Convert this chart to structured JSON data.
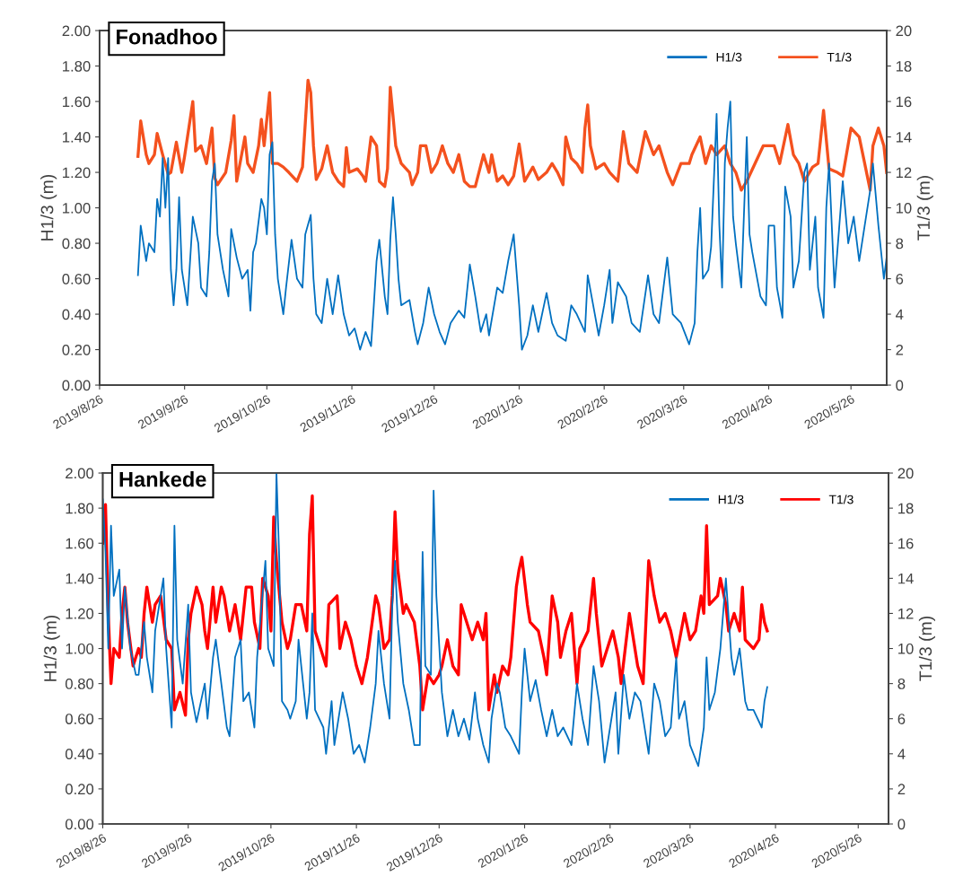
{
  "chart_data": [
    {
      "type": "line",
      "title": "Fonadhoo",
      "ylabel": "H1/3 (m)",
      "y2label": "T1/3 (m)",
      "legend": "top right",
      "grid": false,
      "xlim": [
        "2019-08-26",
        "2020-06-08"
      ],
      "xticks": [
        {
          "value": "2019-08-26",
          "label": "2019/8/26"
        },
        {
          "value": "2019-09-26",
          "label": "2019/9/26"
        },
        {
          "value": "2019-10-26",
          "label": "2019/10/26"
        },
        {
          "value": "2019-11-26",
          "label": "2019/11/26"
        },
        {
          "value": "2019-12-26",
          "label": "2019/12/26"
        },
        {
          "value": "2020-01-26",
          "label": "2020/1/26"
        },
        {
          "value": "2020-02-26",
          "label": "2020/2/26"
        },
        {
          "value": "2020-03-26",
          "label": "2020/3/26"
        },
        {
          "value": "2020-04-26",
          "label": "2020/4/26"
        },
        {
          "value": "2020-05-26",
          "label": "2020/5/26"
        }
      ],
      "ylim": [
        0,
        2
      ],
      "yticks": [
        {
          "value": 0,
          "label": "0.00"
        },
        {
          "value": 0.2,
          "label": "0.20"
        },
        {
          "value": 0.4,
          "label": "0.40"
        },
        {
          "value": 0.6,
          "label": "0.60"
        },
        {
          "value": 0.8,
          "label": "0.80"
        },
        {
          "value": 1.0,
          "label": "1.00"
        },
        {
          "value": 1.2,
          "label": "1.20"
        },
        {
          "value": 1.4,
          "label": "1.40"
        },
        {
          "value": 1.6,
          "label": "1.60"
        },
        {
          "value": 1.8,
          "label": "1.80"
        },
        {
          "value": 2.0,
          "label": "2.00"
        }
      ],
      "y2lim": [
        0,
        20
      ],
      "y2ticks": [
        0,
        2,
        4,
        6,
        8,
        10,
        12,
        14,
        16,
        18,
        20
      ],
      "series": [
        {
          "name": "H1/3",
          "color": "#0070c0",
          "axis": "y",
          "x": [
            "2019-09-09",
            "2019-09-10",
            "2019-09-12",
            "2019-09-13",
            "2019-09-15",
            "2019-09-16",
            "2019-09-17",
            "2019-09-18",
            "2019-09-19",
            "2019-09-20",
            "2019-09-21",
            "2019-09-22",
            "2019-09-23",
            "2019-09-24",
            "2019-09-25",
            "2019-09-27",
            "2019-09-29",
            "2019-10-01",
            "2019-10-02",
            "2019-10-04",
            "2019-10-05",
            "2019-10-06",
            "2019-10-07",
            "2019-10-08",
            "2019-10-10",
            "2019-10-12",
            "2019-10-13",
            "2019-10-15",
            "2019-10-17",
            "2019-10-19",
            "2019-10-20",
            "2019-10-21",
            "2019-10-22",
            "2019-10-24",
            "2019-10-25",
            "2019-10-26",
            "2019-10-27",
            "2019-10-28",
            "2019-10-29",
            "2019-10-30",
            "2019-11-01",
            "2019-11-02",
            "2019-11-04",
            "2019-11-06",
            "2019-11-08",
            "2019-11-09",
            "2019-11-11",
            "2019-11-12",
            "2019-11-13",
            "2019-11-15",
            "2019-11-17",
            "2019-11-19",
            "2019-11-21",
            "2019-11-23",
            "2019-11-25",
            "2019-11-27",
            "2019-11-29",
            "2019-12-01",
            "2019-12-03",
            "2019-12-04",
            "2019-12-05",
            "2019-12-06",
            "2019-12-08",
            "2019-12-09",
            "2019-12-10",
            "2019-12-11",
            "2019-12-12",
            "2019-12-13",
            "2019-12-14",
            "2019-12-17",
            "2019-12-19",
            "2019-12-20",
            "2019-12-22",
            "2019-12-24",
            "2019-12-26",
            "2019-12-28",
            "2019-12-30",
            "2020-01-01",
            "2020-01-04",
            "2020-01-06",
            "2020-01-08",
            "2020-01-10",
            "2020-01-12",
            "2020-01-14",
            "2020-01-15",
            "2020-01-18",
            "2020-01-20",
            "2020-01-22",
            "2020-01-24",
            "2020-01-25",
            "2020-01-26",
            "2020-01-27",
            "2020-01-29",
            "2020-01-31",
            "2020-02-02",
            "2020-02-05",
            "2020-02-07",
            "2020-02-09",
            "2020-02-12",
            "2020-02-14",
            "2020-02-16",
            "2020-02-19",
            "2020-02-20",
            "2020-02-22",
            "2020-02-24",
            "2020-02-26",
            "2020-02-28",
            "2020-02-29",
            "2020-03-02",
            "2020-03-05",
            "2020-03-07",
            "2020-03-10",
            "2020-03-13",
            "2020-03-15",
            "2020-03-17",
            "2020-03-20",
            "2020-03-22",
            "2020-03-25",
            "2020-03-28",
            "2020-03-30",
            "2020-03-31",
            "2020-04-01",
            "2020-04-02",
            "2020-04-04",
            "2020-04-05",
            "2020-04-07",
            "2020-04-08",
            "2020-04-09",
            "2020-04-10",
            "2020-04-11",
            "2020-04-12",
            "2020-04-13",
            "2020-04-14",
            "2020-04-16",
            "2020-04-18",
            "2020-04-19",
            "2020-04-20",
            "2020-04-23",
            "2020-04-25",
            "2020-04-26",
            "2020-04-28",
            "2020-04-29",
            "2020-05-01",
            "2020-05-02",
            "2020-05-04",
            "2020-05-05",
            "2020-05-07",
            "2020-05-09",
            "2020-05-10",
            "2020-05-11",
            "2020-05-13",
            "2020-05-14",
            "2020-05-16",
            "2020-05-17",
            "2020-05-18",
            "2020-05-20",
            "2020-05-21",
            "2020-05-23",
            "2020-05-25",
            "2020-05-27",
            "2020-05-29",
            "2020-05-31",
            "2020-06-02",
            "2020-06-03",
            "2020-06-05",
            "2020-06-07",
            "2020-06-08"
          ],
          "values": [
            0.62,
            0.9,
            0.7,
            0.8,
            0.75,
            1.05,
            0.95,
            1.28,
            1.0,
            1.28,
            0.65,
            0.45,
            0.65,
            1.06,
            0.65,
            0.45,
            0.95,
            0.8,
            0.55,
            0.5,
            0.75,
            1.15,
            1.25,
            0.85,
            0.65,
            0.5,
            0.88,
            0.72,
            0.6,
            0.65,
            0.42,
            0.75,
            0.8,
            1.05,
            1.0,
            0.85,
            1.3,
            1.37,
            0.85,
            0.6,
            0.4,
            0.55,
            0.82,
            0.6,
            0.55,
            0.85,
            0.96,
            0.6,
            0.4,
            0.35,
            0.6,
            0.4,
            0.62,
            0.4,
            0.28,
            0.32,
            0.2,
            0.3,
            0.22,
            0.45,
            0.7,
            0.82,
            0.5,
            0.4,
            0.82,
            1.06,
            0.85,
            0.6,
            0.45,
            0.48,
            0.3,
            0.23,
            0.35,
            0.55,
            0.4,
            0.3,
            0.23,
            0.35,
            0.42,
            0.38,
            0.68,
            0.5,
            0.3,
            0.4,
            0.28,
            0.55,
            0.52,
            0.7,
            0.85,
            0.65,
            0.45,
            0.2,
            0.28,
            0.45,
            0.3,
            0.52,
            0.35,
            0.28,
            0.25,
            0.45,
            0.4,
            0.3,
            0.62,
            0.45,
            0.28,
            0.45,
            0.65,
            0.35,
            0.58,
            0.5,
            0.35,
            0.3,
            0.62,
            0.4,
            0.35,
            0.72,
            0.4,
            0.35,
            0.23,
            0.35,
            0.75,
            1.0,
            0.6,
            0.65,
            0.78,
            1.53,
            0.9,
            0.55,
            1.25,
            1.45,
            1.6,
            0.95,
            0.8,
            0.55,
            1.4,
            0.85,
            0.75,
            0.5,
            0.45,
            0.9,
            0.9,
            0.55,
            0.38,
            1.12,
            0.95,
            0.55,
            0.7,
            1.2,
            1.25,
            0.65,
            0.95,
            0.55,
            0.38,
            1.0,
            1.25,
            0.55,
            0.75,
            1.15,
            0.8,
            0.95,
            0.7,
            0.9,
            1.1,
            1.25,
            0.9,
            0.6,
            0.72
          ]
        },
        {
          "name": "T1/3",
          "color": "#f4511e",
          "axis": "y2",
          "x": [
            "2019-09-09",
            "2019-09-10",
            "2019-09-12",
            "2019-09-13",
            "2019-09-15",
            "2019-09-16",
            "2019-09-18",
            "2019-09-20",
            "2019-09-21",
            "2019-09-23",
            "2019-09-25",
            "2019-09-26",
            "2019-09-29",
            "2019-09-30",
            "2019-10-02",
            "2019-10-04",
            "2019-10-06",
            "2019-10-07",
            "2019-10-08",
            "2019-10-11",
            "2019-10-13",
            "2019-10-14",
            "2019-10-15",
            "2019-10-18",
            "2019-10-19",
            "2019-10-21",
            "2019-10-23",
            "2019-10-24",
            "2019-10-25",
            "2019-10-27",
            "2019-10-28",
            "2019-10-30",
            "2019-11-01",
            "2019-11-03",
            "2019-11-06",
            "2019-11-08",
            "2019-11-10",
            "2019-11-11",
            "2019-11-12",
            "2019-11-13",
            "2019-11-15",
            "2019-11-17",
            "2019-11-19",
            "2019-11-21",
            "2019-11-23",
            "2019-11-24",
            "2019-11-25",
            "2019-11-28",
            "2019-11-30",
            "2019-12-01",
            "2019-12-03",
            "2019-12-05",
            "2019-12-06",
            "2019-12-08",
            "2019-12-09",
            "2019-12-10",
            "2019-12-11",
            "2019-12-12",
            "2019-12-14",
            "2019-12-17",
            "2019-12-18",
            "2019-12-20",
            "2019-12-21",
            "2019-12-23",
            "2019-12-25",
            "2019-12-27",
            "2019-12-29",
            "2019-12-31",
            "2020-01-02",
            "2020-01-04",
            "2020-01-06",
            "2020-01-08",
            "2020-01-10",
            "2020-01-13",
            "2020-01-15",
            "2020-01-16",
            "2020-01-18",
            "2020-01-20",
            "2020-01-22",
            "2020-01-24",
            "2020-01-26",
            "2020-01-28",
            "2020-01-31",
            "2020-02-02",
            "2020-02-05",
            "2020-02-07",
            "2020-02-09",
            "2020-02-11",
            "2020-02-12",
            "2020-02-14",
            "2020-02-16",
            "2020-02-18",
            "2020-02-19",
            "2020-02-20",
            "2020-02-21",
            "2020-02-23",
            "2020-02-26",
            "2020-02-28",
            "2020-03-02",
            "2020-03-04",
            "2020-03-06",
            "2020-03-09",
            "2020-03-12",
            "2020-03-15",
            "2020-03-17",
            "2020-03-20",
            "2020-03-22",
            "2020-03-25",
            "2020-03-28",
            "2020-03-29",
            "2020-04-01",
            "2020-04-03",
            "2020-04-05",
            "2020-04-07",
            "2020-04-10",
            "2020-04-12",
            "2020-04-14",
            "2020-04-16",
            "2020-04-18",
            "2020-04-21",
            "2020-04-24",
            "2020-04-28",
            "2020-04-30",
            "2020-05-03",
            "2020-05-05",
            "2020-05-07",
            "2020-05-09",
            "2020-05-12",
            "2020-05-14",
            "2020-05-16",
            "2020-05-18",
            "2020-05-21",
            "2020-05-23",
            "2020-05-26",
            "2020-05-29",
            "2020-05-31",
            "2020-06-02",
            "2020-06-03",
            "2020-06-05",
            "2020-06-07",
            "2020-06-08"
          ],
          "values": [
            12.9,
            14.9,
            13.0,
            12.5,
            13.0,
            14.2,
            13.0,
            11.9,
            12.0,
            13.7,
            12.0,
            12.9,
            16.0,
            13.2,
            13.5,
            12.5,
            14.5,
            11.7,
            11.3,
            12.0,
            13.8,
            15.2,
            11.5,
            14.0,
            12.5,
            12.0,
            13.5,
            15.0,
            13.5,
            16.5,
            12.5,
            12.5,
            12.3,
            12.0,
            11.5,
            12.3,
            17.2,
            16.5,
            13.5,
            11.6,
            12.2,
            13.5,
            12.0,
            11.5,
            11.2,
            13.4,
            12.0,
            12.2,
            11.8,
            11.5,
            14.0,
            13.5,
            11.5,
            11.2,
            12.2,
            16.8,
            15.2,
            13.5,
            12.5,
            12.0,
            11.3,
            12.0,
            13.5,
            13.5,
            12.0,
            12.5,
            13.5,
            12.5,
            12.0,
            13.0,
            11.5,
            11.2,
            11.2,
            13.0,
            12.0,
            13.0,
            11.5,
            11.8,
            11.3,
            11.8,
            13.6,
            11.5,
            12.3,
            11.6,
            12.0,
            12.5,
            12.0,
            11.3,
            14.0,
            12.8,
            12.5,
            12.0,
            14.5,
            15.8,
            13.5,
            12.2,
            12.5,
            12.0,
            11.5,
            14.3,
            12.5,
            12.0,
            14.3,
            13.0,
            13.5,
            12.0,
            11.3,
            12.5,
            12.5,
            13.0,
            14.0,
            12.5,
            13.5,
            13.0,
            13.5,
            12.5,
            12.0,
            11.0,
            11.5,
            12.5,
            13.5,
            13.5,
            12.5,
            14.7,
            13.0,
            12.5,
            11.5,
            12.3,
            12.5,
            15.5,
            12.2,
            12.0,
            11.8,
            14.5,
            14.0,
            12.5,
            11.0,
            13.5,
            14.5,
            13.5,
            12.0
          ]
        }
      ]
    },
    {
      "type": "line",
      "title": "Hankede",
      "ylabel": "H1/3 (m)",
      "y2label": "T1/3 (m)",
      "legend": "top right",
      "grid": false,
      "xlim": [
        "2019-08-26",
        "2020-06-06"
      ],
      "xticks": [
        {
          "value": "2019-08-26",
          "label": "2019/8/26"
        },
        {
          "value": "2019-09-26",
          "label": "2019/9/26"
        },
        {
          "value": "2019-10-26",
          "label": "2019/10/26"
        },
        {
          "value": "2019-11-26",
          "label": "2019/11/26"
        },
        {
          "value": "2019-12-26",
          "label": "2019/12/26"
        },
        {
          "value": "2020-01-26",
          "label": "2020/1/26"
        },
        {
          "value": "2020-02-26",
          "label": "2020/2/26"
        },
        {
          "value": "2020-03-26",
          "label": "2020/3/26"
        },
        {
          "value": "2020-04-26",
          "label": "2020/4/26"
        },
        {
          "value": "2020-05-26",
          "label": "2020/5/26"
        }
      ],
      "ylim": [
        0,
        2
      ],
      "yticks": [
        {
          "value": 0,
          "label": "0.00"
        },
        {
          "value": 0.2,
          "label": "0.20"
        },
        {
          "value": 0.4,
          "label": "0.40"
        },
        {
          "value": 0.6,
          "label": "0.60"
        },
        {
          "value": 0.8,
          "label": "0.80"
        },
        {
          "value": 1.0,
          "label": "1.00"
        },
        {
          "value": 1.2,
          "label": "1.20"
        },
        {
          "value": 1.4,
          "label": "1.40"
        },
        {
          "value": 1.6,
          "label": "1.60"
        },
        {
          "value": 1.8,
          "label": "1.80"
        },
        {
          "value": 2.0,
          "label": "2.00"
        }
      ],
      "y2lim": [
        0,
        20
      ],
      "y2ticks": [
        0,
        2,
        4,
        6,
        8,
        10,
        12,
        14,
        16,
        18,
        20
      ],
      "series": [
        {
          "name": "H1/3",
          "color": "#0070c0",
          "axis": "y",
          "x": [
            "2019-08-26",
            "2019-08-27",
            "2019-08-28",
            "2019-08-29",
            "2019-08-30",
            "2019-09-01",
            "2019-09-02",
            "2019-09-03",
            "2019-09-05",
            "2019-09-07",
            "2019-09-08",
            "2019-09-10",
            "2019-09-11",
            "2019-09-13",
            "2019-09-14",
            "2019-09-17",
            "2019-09-18",
            "2019-09-20",
            "2019-09-21",
            "2019-09-22",
            "2019-09-24",
            "2019-09-26",
            "2019-09-27",
            "2019-09-29",
            "2019-10-02",
            "2019-10-03",
            "2019-10-05",
            "2019-10-06",
            "2019-10-08",
            "2019-10-10",
            "2019-10-11",
            "2019-10-13",
            "2019-10-15",
            "2019-10-16",
            "2019-10-18",
            "2019-10-20",
            "2019-10-21",
            "2019-10-23",
            "2019-10-24",
            "2019-10-25",
            "2019-10-27",
            "2019-10-28",
            "2019-10-29",
            "2019-10-30",
            "2019-11-01",
            "2019-11-02",
            "2019-11-04",
            "2019-11-05",
            "2019-11-08",
            "2019-11-09",
            "2019-11-10",
            "2019-11-11",
            "2019-11-14",
            "2019-11-15",
            "2019-11-17",
            "2019-11-18",
            "2019-11-21",
            "2019-11-23",
            "2019-11-25",
            "2019-11-27",
            "2019-11-29",
            "2019-12-01",
            "2019-12-03",
            "2019-12-04",
            "2019-12-06",
            "2019-12-08",
            "2019-12-09",
            "2019-12-10",
            "2019-12-11",
            "2019-12-13",
            "2019-12-15",
            "2019-12-17",
            "2019-12-19",
            "2019-12-20",
            "2019-12-21",
            "2019-12-23",
            "2019-12-24",
            "2019-12-25",
            "2019-12-27",
            "2019-12-29",
            "2019-12-31",
            "2020-01-02",
            "2020-01-04",
            "2020-01-06",
            "2020-01-08",
            "2020-01-09",
            "2020-01-11",
            "2020-01-13",
            "2020-01-14",
            "2020-01-16",
            "2020-01-17",
            "2020-01-19",
            "2020-01-21",
            "2020-01-24",
            "2020-01-25",
            "2020-01-26",
            "2020-01-28",
            "2020-01-30",
            "2020-02-01",
            "2020-02-03",
            "2020-02-05",
            "2020-02-07",
            "2020-02-09",
            "2020-02-12",
            "2020-02-14",
            "2020-02-16",
            "2020-02-18",
            "2020-02-20",
            "2020-02-22",
            "2020-02-24",
            "2020-02-26",
            "2020-02-28",
            "2020-02-29",
            "2020-03-02",
            "2020-03-04",
            "2020-03-06",
            "2020-03-08",
            "2020-03-11",
            "2020-03-13",
            "2020-03-15",
            "2020-03-17",
            "2020-03-19",
            "2020-03-21",
            "2020-03-22",
            "2020-03-24",
            "2020-03-26",
            "2020-03-29",
            "2020-03-31",
            "2020-04-01",
            "2020-04-02",
            "2020-04-04",
            "2020-04-06",
            "2020-04-08",
            "2020-04-10",
            "2020-04-11",
            "2020-04-13",
            "2020-04-15",
            "2020-04-16",
            "2020-04-18",
            "2020-04-21",
            "2020-04-22",
            "2020-04-23"
          ],
          "values": [
            1.85,
            1.55,
            1.0,
            1.7,
            1.3,
            1.45,
            1.0,
            1.35,
            1.0,
            0.85,
            0.85,
            1.15,
            0.95,
            0.75,
            1.1,
            1.4,
            1.0,
            0.55,
            1.7,
            1.05,
            0.8,
            1.25,
            0.75,
            0.58,
            0.8,
            0.6,
            0.95,
            1.05,
            0.8,
            0.55,
            0.5,
            0.95,
            1.05,
            0.7,
            0.75,
            0.55,
            0.95,
            1.32,
            1.5,
            1.0,
            0.9,
            2.0,
            1.52,
            0.7,
            0.65,
            0.6,
            0.7,
            1.05,
            0.6,
            0.75,
            1.2,
            0.65,
            0.55,
            0.4,
            0.7,
            0.45,
            0.75,
            0.6,
            0.4,
            0.45,
            0.35,
            0.55,
            0.8,
            1.1,
            0.8,
            0.6,
            1.25,
            1.5,
            1.15,
            0.8,
            0.65,
            0.45,
            0.45,
            1.55,
            0.9,
            0.85,
            1.9,
            1.3,
            0.75,
            0.5,
            0.65,
            0.5,
            0.6,
            0.48,
            0.75,
            0.6,
            0.45,
            0.35,
            0.6,
            0.8,
            0.75,
            0.55,
            0.5,
            0.4,
            0.75,
            1.0,
            0.7,
            0.82,
            0.65,
            0.5,
            0.65,
            0.5,
            0.55,
            0.45,
            0.8,
            0.6,
            0.45,
            0.9,
            0.7,
            0.35,
            0.55,
            0.75,
            0.4,
            0.85,
            0.6,
            0.75,
            0.7,
            0.4,
            0.8,
            0.7,
            0.5,
            0.55,
            0.95,
            0.6,
            0.7,
            0.45,
            0.33,
            0.55,
            0.95,
            0.65,
            0.75,
            1.0,
            1.4,
            0.95,
            0.85,
            1.0,
            0.7,
            0.65,
            0.65,
            0.55,
            0.7,
            0.78
          ]
        },
        {
          "name": "T1/3",
          "color": "#ff0000",
          "axis": "y2",
          "x": [
            "2019-08-26",
            "2019-08-27",
            "2019-08-28",
            "2019-08-29",
            "2019-08-30",
            "2019-09-01",
            "2019-09-02",
            "2019-09-03",
            "2019-09-04",
            "2019-09-06",
            "2019-09-08",
            "2019-09-09",
            "2019-09-10",
            "2019-09-11",
            "2019-09-13",
            "2019-09-14",
            "2019-09-16",
            "2019-09-18",
            "2019-09-20",
            "2019-09-21",
            "2019-09-23",
            "2019-09-25",
            "2019-09-26",
            "2019-09-27",
            "2019-09-29",
            "2019-10-01",
            "2019-10-02",
            "2019-10-03",
            "2019-10-05",
            "2019-10-06",
            "2019-10-08",
            "2019-10-09",
            "2019-10-11",
            "2019-10-13",
            "2019-10-15",
            "2019-10-17",
            "2019-10-19",
            "2019-10-20",
            "2019-10-22",
            "2019-10-23",
            "2019-10-25",
            "2019-10-26",
            "2019-10-27",
            "2019-10-28",
            "2019-10-30",
            "2019-11-01",
            "2019-11-02",
            "2019-11-04",
            "2019-11-06",
            "2019-11-08",
            "2019-11-09",
            "2019-11-10",
            "2019-11-11",
            "2019-11-13",
            "2019-11-15",
            "2019-11-16",
            "2019-11-19",
            "2019-11-20",
            "2019-11-22",
            "2019-11-24",
            "2019-11-26",
            "2019-11-28",
            "2019-11-30",
            "2019-12-03",
            "2019-12-04",
            "2019-12-06",
            "2019-12-08",
            "2019-12-09",
            "2019-12-10",
            "2019-12-11",
            "2019-12-13",
            "2019-12-14",
            "2019-12-17",
            "2019-12-19",
            "2019-12-20",
            "2019-12-22",
            "2019-12-24",
            "2019-12-26",
            "2019-12-27",
            "2019-12-29",
            "2019-12-31",
            "2020-01-02",
            "2020-01-03",
            "2020-01-05",
            "2020-01-07",
            "2020-01-09",
            "2020-01-11",
            "2020-01-12",
            "2020-01-13",
            "2020-01-15",
            "2020-01-16",
            "2020-01-18",
            "2020-01-20",
            "2020-01-21",
            "2020-01-23",
            "2020-01-24",
            "2020-01-25",
            "2020-01-27",
            "2020-01-28",
            "2020-01-31",
            "2020-02-02",
            "2020-02-03",
            "2020-02-05",
            "2020-02-07",
            "2020-02-08",
            "2020-02-10",
            "2020-02-12",
            "2020-02-14",
            "2020-02-15",
            "2020-02-18",
            "2020-02-20",
            "2020-02-21",
            "2020-02-23",
            "2020-02-26",
            "2020-02-27",
            "2020-02-29",
            "2020-03-01",
            "2020-03-04",
            "2020-03-05",
            "2020-03-07",
            "2020-03-09",
            "2020-03-11",
            "2020-03-13",
            "2020-03-15",
            "2020-03-17",
            "2020-03-19",
            "2020-03-21",
            "2020-03-24",
            "2020-03-26",
            "2020-03-28",
            "2020-03-30",
            "2020-03-31",
            "2020-04-01",
            "2020-04-02",
            "2020-04-05",
            "2020-04-06",
            "2020-04-08",
            "2020-04-09",
            "2020-04-11",
            "2020-04-13",
            "2020-04-14",
            "2020-04-15",
            "2020-04-18",
            "2020-04-20",
            "2020-04-21",
            "2020-04-22",
            "2020-04-23"
          ],
          "values": [
            16.0,
            18.2,
            12.0,
            8.0,
            10.0,
            9.5,
            12.0,
            13.5,
            11.5,
            9.0,
            10.0,
            9.5,
            12.0,
            13.5,
            11.5,
            12.5,
            13.0,
            10.5,
            10.0,
            6.5,
            7.5,
            6.2,
            10.5,
            12.0,
            13.5,
            12.5,
            11.0,
            10.0,
            13.5,
            11.5,
            13.5,
            13.0,
            11.0,
            12.5,
            10.5,
            13.5,
            13.5,
            11.5,
            10.0,
            14.0,
            13.0,
            11.0,
            17.5,
            15.0,
            11.5,
            10.0,
            10.5,
            12.5,
            12.5,
            11.0,
            16.5,
            18.7,
            11.0,
            10.0,
            9.0,
            12.5,
            13.0,
            10.0,
            11.5,
            10.5,
            9.0,
            8.0,
            9.5,
            13.0,
            12.5,
            10.0,
            10.5,
            13.0,
            17.8,
            14.5,
            12.0,
            12.5,
            11.5,
            9.0,
            6.5,
            8.5,
            8.0,
            8.5,
            9.0,
            10.5,
            9.0,
            8.5,
            12.5,
            11.5,
            10.5,
            11.5,
            10.5,
            12.0,
            6.5,
            8.5,
            7.5,
            9.0,
            8.5,
            9.5,
            13.5,
            14.5,
            15.2,
            12.5,
            11.5,
            11.0,
            9.5,
            8.5,
            13.0,
            11.5,
            9.5,
            11.0,
            12.0,
            8.0,
            10.0,
            11.0,
            14.0,
            12.0,
            9.0,
            10.5,
            11.0,
            9.5,
            8.0,
            12.0,
            11.0,
            9.0,
            8.0,
            15.0,
            13.0,
            11.5,
            12.0,
            11.0,
            9.5,
            12.0,
            10.5,
            11.0,
            13.0,
            12.0,
            17.0,
            12.5,
            13.0,
            14.0,
            12.5,
            11.0,
            12.0,
            11.0,
            13.5,
            10.5,
            10.0,
            10.5,
            12.5,
            11.5,
            11.0
          ]
        }
      ]
    }
  ]
}
